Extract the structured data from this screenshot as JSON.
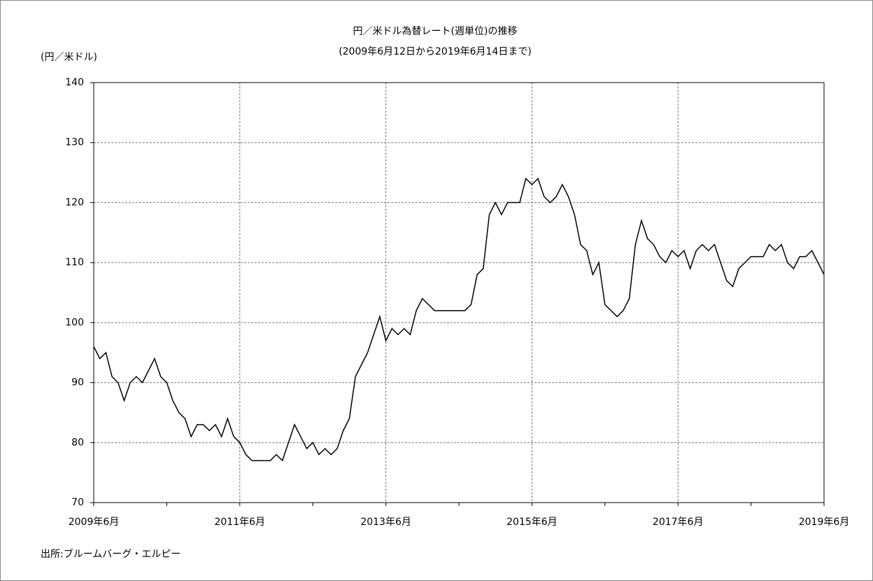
{
  "chart_data": {
    "type": "line",
    "title": "円／米ドル為替レート(週単位)の推移",
    "subtitle": "(2009年6月12日から2019年6月14日まで)",
    "y_axis_label": "(円／米ドル)",
    "source": "出所:ブルームバーグ・エルピー",
    "x": [
      "2009-06",
      "2009-07",
      "2009-08",
      "2009-09",
      "2009-10",
      "2009-11",
      "2009-12",
      "2010-01",
      "2010-02",
      "2010-03",
      "2010-04",
      "2010-05",
      "2010-06",
      "2010-07",
      "2010-08",
      "2010-09",
      "2010-10",
      "2010-11",
      "2010-12",
      "2011-01",
      "2011-02",
      "2011-03",
      "2011-04",
      "2011-05",
      "2011-06",
      "2011-07",
      "2011-08",
      "2011-09",
      "2011-10",
      "2011-11",
      "2011-12",
      "2012-01",
      "2012-02",
      "2012-03",
      "2012-04",
      "2012-05",
      "2012-06",
      "2012-07",
      "2012-08",
      "2012-09",
      "2012-10",
      "2012-11",
      "2012-12",
      "2013-01",
      "2013-02",
      "2013-03",
      "2013-04",
      "2013-05",
      "2013-06",
      "2013-07",
      "2013-08",
      "2013-09",
      "2013-10",
      "2013-11",
      "2013-12",
      "2014-01",
      "2014-02",
      "2014-03",
      "2014-04",
      "2014-05",
      "2014-06",
      "2014-07",
      "2014-08",
      "2014-09",
      "2014-10",
      "2014-11",
      "2014-12",
      "2015-01",
      "2015-02",
      "2015-03",
      "2015-04",
      "2015-05",
      "2015-06",
      "2015-07",
      "2015-08",
      "2015-09",
      "2015-10",
      "2015-11",
      "2015-12",
      "2016-01",
      "2016-02",
      "2016-03",
      "2016-04",
      "2016-05",
      "2016-06",
      "2016-07",
      "2016-08",
      "2016-09",
      "2016-10",
      "2016-11",
      "2016-12",
      "2017-01",
      "2017-02",
      "2017-03",
      "2017-04",
      "2017-05",
      "2017-06",
      "2017-07",
      "2017-08",
      "2017-09",
      "2017-10",
      "2017-11",
      "2017-12",
      "2018-01",
      "2018-02",
      "2018-03",
      "2018-04",
      "2018-05",
      "2018-06",
      "2018-07",
      "2018-08",
      "2018-09",
      "2018-10",
      "2018-11",
      "2018-12",
      "2019-01",
      "2019-02",
      "2019-03",
      "2019-04",
      "2019-05",
      "2019-06"
    ],
    "series": [
      {
        "color": "#000000",
        "values": [
          96,
          94,
          95,
          91,
          90,
          87,
          90,
          91,
          90,
          92,
          94,
          91,
          90,
          87,
          85,
          84,
          81,
          83,
          83,
          82,
          83,
          81,
          84,
          81,
          80,
          78,
          77,
          77,
          77,
          77,
          78,
          77,
          80,
          83,
          81,
          79,
          80,
          78,
          79,
          78,
          79,
          82,
          84,
          91,
          93,
          95,
          98,
          101,
          97,
          99,
          98,
          99,
          98,
          102,
          104,
          103,
          102,
          102,
          102,
          102,
          102,
          102,
          103,
          108,
          109,
          118,
          120,
          118,
          120,
          120,
          120,
          124,
          123,
          124,
          121,
          120,
          121,
          123,
          121,
          118,
          113,
          112,
          108,
          110,
          103,
          102,
          101,
          102,
          104,
          113,
          117,
          114,
          113,
          111,
          110,
          112,
          111,
          112,
          109,
          112,
          113,
          112,
          113,
          110,
          107,
          106,
          109,
          110,
          111,
          111,
          111,
          113,
          112,
          113,
          110,
          109,
          111,
          111,
          112,
          110,
          108
        ]
      }
    ],
    "xlim": [
      "2009-06",
      "2019-06"
    ],
    "xticks": [
      {
        "value": "2009-06",
        "label": "2009年6月"
      },
      {
        "value": "2011-06",
        "label": "2011年6月"
      },
      {
        "value": "2013-06",
        "label": "2013年6月"
      },
      {
        "value": "2015-06",
        "label": "2015年6月"
      },
      {
        "value": "2017-06",
        "label": "2017年6月"
      },
      {
        "value": "2019-06",
        "label": "2019年6月"
      }
    ],
    "ylim": [
      70,
      140
    ],
    "yticks": [
      70,
      80,
      90,
      100,
      110,
      120,
      130,
      140
    ],
    "grid": true
  }
}
